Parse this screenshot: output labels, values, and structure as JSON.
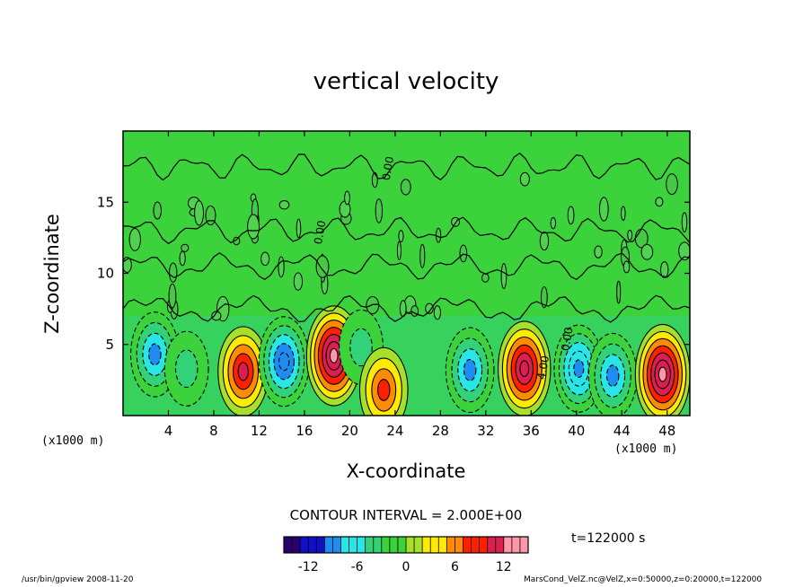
{
  "chart_data": {
    "type": "heatmap",
    "title": "vertical velocity",
    "xlabel": "X-coordinate",
    "ylabel": "Z-coordinate",
    "x_unit": "(x1000 m)",
    "y_unit": "(x1000 m)",
    "xlim": [
      0,
      50
    ],
    "ylim": [
      0,
      20
    ],
    "x_ticks": [
      4,
      8,
      12,
      16,
      20,
      24,
      28,
      32,
      36,
      40,
      44,
      48
    ],
    "y_ticks": [
      5,
      10,
      15
    ],
    "contour_interval": "CONTOUR INTERVAL = 2.000E+00",
    "contour_labels": [
      "0.00",
      "4.00"
    ],
    "colorbar": {
      "ticks": [
        -12,
        -6,
        0,
        6,
        12
      ],
      "range": [
        -15,
        15
      ],
      "colors": [
        "#2a0070",
        "#1010c8",
        "#1e8cf0",
        "#28e6e6",
        "#32d278",
        "#3cd23c",
        "#a6e02a",
        "#ffeb00",
        "#ff8c00",
        "#ff2000",
        "#dc1e50",
        "#ff96aa"
      ]
    },
    "cells": [
      {
        "x": 2.8,
        "z": 4.3,
        "value": -8
      },
      {
        "x": 5.6,
        "z": 3.3,
        "value": -4
      },
      {
        "x": 10.6,
        "z": 3.1,
        "value": 10
      },
      {
        "x": 14.2,
        "z": 3.8,
        "value": -10
      },
      {
        "x": 18.6,
        "z": 4.2,
        "value": 14
      },
      {
        "x": 21.0,
        "z": 4.8,
        "value": -4
      },
      {
        "x": 23.0,
        "z": 1.8,
        "value": 8
      },
      {
        "x": 30.6,
        "z": 3.2,
        "value": -8
      },
      {
        "x": 35.4,
        "z": 3.3,
        "value": 12
      },
      {
        "x": 40.2,
        "z": 3.3,
        "value": -9
      },
      {
        "x": 43.2,
        "z": 2.8,
        "value": -8
      },
      {
        "x": 47.6,
        "z": 2.9,
        "value": 14
      }
    ],
    "time": "t=122000 s"
  },
  "footer": {
    "left": "/usr/bin/gpview   2008-11-20",
    "right": "MarsCond_VelZ.nc@VelZ,x=0:50000,z=0:20000,t=122000"
  }
}
